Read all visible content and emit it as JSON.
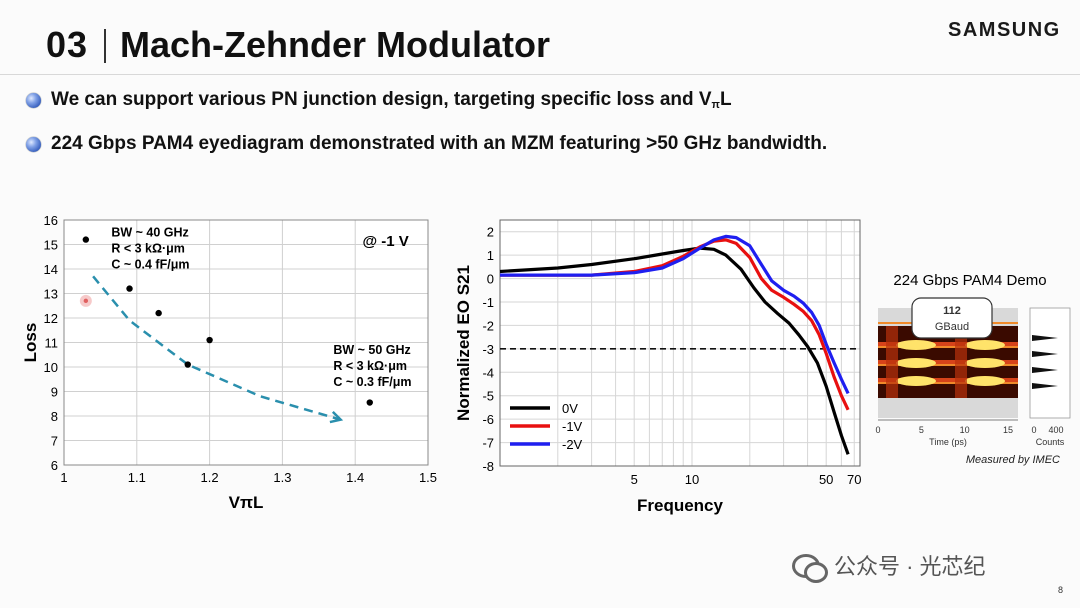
{
  "slide": {
    "number": "03",
    "title": "Mach-Zehnder Modulator",
    "brand": "SAMSUNG",
    "page_number": "8",
    "watermark": "公众号 · 光芯纪"
  },
  "bullets": [
    {
      "pre": "We can support various PN junction design, targeting specific loss and V",
      "sub": "π",
      "post": "L"
    },
    {
      "pre": "224 Gbps PAM4 eyediagram demonstrated with an MZM featuring >50 GHz bandwidth.",
      "sub": "",
      "post": ""
    }
  ],
  "chart_data": [
    {
      "type": "scatter",
      "title": "",
      "xlabel": "VπL",
      "ylabel": "Loss",
      "xlim": [
        1.0,
        1.5
      ],
      "ylim": [
        6,
        16
      ],
      "x_ticks": [
        "1",
        "1.1",
        "1.2",
        "1.3",
        "1.4",
        "1.5"
      ],
      "y_ticks": [
        "6",
        "7",
        "8",
        "9",
        "10",
        "11",
        "12",
        "13",
        "14",
        "15",
        "16"
      ],
      "grid": true,
      "points": [
        {
          "x": 1.03,
          "y": 15.2
        },
        {
          "x": 1.09,
          "y": 13.2
        },
        {
          "x": 1.13,
          "y": 12.2
        },
        {
          "x": 1.17,
          "y": 10.1
        },
        {
          "x": 1.2,
          "y": 11.1
        },
        {
          "x": 1.42,
          "y": 8.55
        }
      ],
      "highlight_point": {
        "x": 1.03,
        "y": 12.7
      },
      "trend_arrow": [
        [
          1.04,
          13.7
        ],
        [
          1.09,
          11.9
        ],
        [
          1.17,
          10.1
        ],
        [
          1.27,
          8.8
        ],
        [
          1.38,
          7.85
        ]
      ],
      "annotations": [
        {
          "lines": [
            "BW ~ 40 GHz",
            "R < 3 kΩ·μm",
            "C ~ 0.4 fF/μm"
          ],
          "x": 1.065,
          "y": 15.5
        },
        {
          "lines": [
            "BW ~ 50 GHz",
            "R < 3 kΩ·μm",
            "C ~ 0.3 fF/μm"
          ],
          "x": 1.37,
          "y": 10.7
        },
        {
          "lines": [
            "@ -1 V"
          ],
          "x": 1.41,
          "y": 15.1
        }
      ],
      "colors": {
        "points": "#000000",
        "arrow": "#2a8fad",
        "highlight": "#e06060"
      }
    },
    {
      "type": "line",
      "title": "",
      "xlabel": "Frequency",
      "ylabel": "Normalized EO S21",
      "x_scale": "log",
      "xlim": [
        1,
        75
      ],
      "ylim": [
        -8,
        2.5
      ],
      "x_ticks": [
        "5",
        "10",
        "50",
        "70"
      ],
      "y_ticks": [
        "2",
        "1",
        "0",
        "-1",
        "-2",
        "-3",
        "-4",
        "-5",
        "-6",
        "-7",
        "-8"
      ],
      "grid": true,
      "reference_line": {
        "y": -3,
        "style": "dashed"
      },
      "legend_position": "bottom-left",
      "series": [
        {
          "name": "0V",
          "color": "#000000",
          "x": [
            1,
            2,
            3,
            5,
            7,
            9,
            11,
            13,
            15,
            18,
            21,
            24,
            28,
            32,
            36,
            40,
            45,
            50,
            55,
            60,
            65
          ],
          "y": [
            0.3,
            0.45,
            0.6,
            0.85,
            1.05,
            1.2,
            1.3,
            1.25,
            1.0,
            0.4,
            -0.4,
            -1.0,
            -1.5,
            -1.9,
            -2.4,
            -2.9,
            -3.6,
            -4.6,
            -5.7,
            -6.7,
            -7.5
          ]
        },
        {
          "name": "-1V",
          "color": "#e81010",
          "x": [
            1,
            2,
            3,
            5,
            7,
            9,
            11,
            13,
            15,
            17,
            20,
            23,
            26,
            30,
            34,
            38,
            42,
            46,
            50,
            55,
            60,
            65
          ],
          "y": [
            0.15,
            0.15,
            0.15,
            0.3,
            0.55,
            0.95,
            1.35,
            1.6,
            1.65,
            1.5,
            0.9,
            0.0,
            -0.5,
            -0.8,
            -1.1,
            -1.4,
            -1.8,
            -2.4,
            -3.2,
            -4.2,
            -5.0,
            -5.6
          ]
        },
        {
          "name": "-2V",
          "color": "#1f1ff0",
          "x": [
            1,
            2,
            3,
            5,
            7,
            9,
            11,
            13,
            15,
            17,
            20,
            23,
            26,
            30,
            34,
            38,
            42,
            46,
            50,
            55,
            60,
            65
          ],
          "y": [
            0.15,
            0.15,
            0.15,
            0.25,
            0.45,
            0.85,
            1.3,
            1.65,
            1.8,
            1.75,
            1.4,
            0.6,
            -0.1,
            -0.5,
            -0.75,
            -1.05,
            -1.45,
            -2.0,
            -2.8,
            -3.6,
            -4.3,
            -4.9
          ]
        }
      ]
    }
  ],
  "eye_panel": {
    "title": "224 Gbps PAM4 Demo",
    "symbol_rate_value": "112",
    "symbol_rate_unit": "GBaud",
    "x_ticks": [
      "0",
      "5",
      "10",
      "15"
    ],
    "x_label": "Time (ps)",
    "count_ticks": [
      "0",
      "400"
    ],
    "count_label": "Counts",
    "credit": "Measured by IMEC",
    "pam_levels": 4
  }
}
